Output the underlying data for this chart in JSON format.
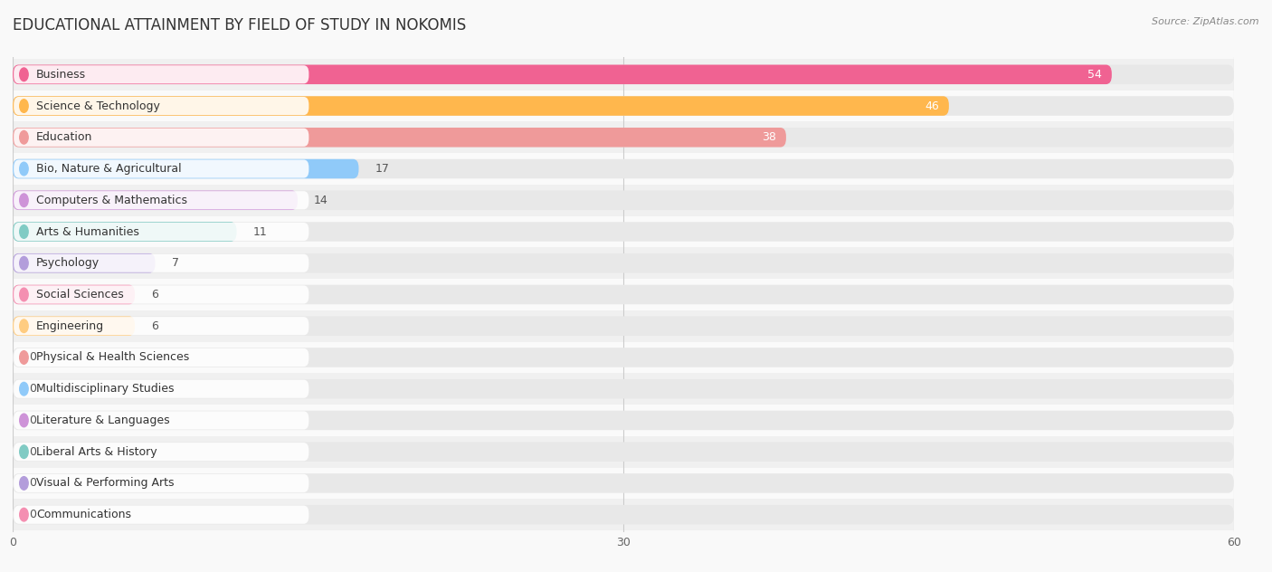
{
  "title": "EDUCATIONAL ATTAINMENT BY FIELD OF STUDY IN NOKOMIS",
  "source": "Source: ZipAtlas.com",
  "categories": [
    "Business",
    "Science & Technology",
    "Education",
    "Bio, Nature & Agricultural",
    "Computers & Mathematics",
    "Arts & Humanities",
    "Psychology",
    "Social Sciences",
    "Engineering",
    "Physical & Health Sciences",
    "Multidisciplinary Studies",
    "Literature & Languages",
    "Liberal Arts & History",
    "Visual & Performing Arts",
    "Communications"
  ],
  "values": [
    54,
    46,
    38,
    17,
    14,
    11,
    7,
    6,
    6,
    0,
    0,
    0,
    0,
    0,
    0
  ],
  "bar_colors": [
    "#F06292",
    "#FFB74D",
    "#EF9A9A",
    "#90CAF9",
    "#CE93D8",
    "#80CBC4",
    "#B39DDB",
    "#F48FB1",
    "#FFCC80",
    "#EF9A9A",
    "#90CAF9",
    "#CE93D8",
    "#80CBC4",
    "#B39DDB",
    "#F48FB1"
  ],
  "xlim_max": 60,
  "background_color": "#f9f9f9",
  "bar_bg_color": "#e8e8e8",
  "title_fontsize": 12,
  "label_fontsize": 9,
  "value_fontsize": 9
}
